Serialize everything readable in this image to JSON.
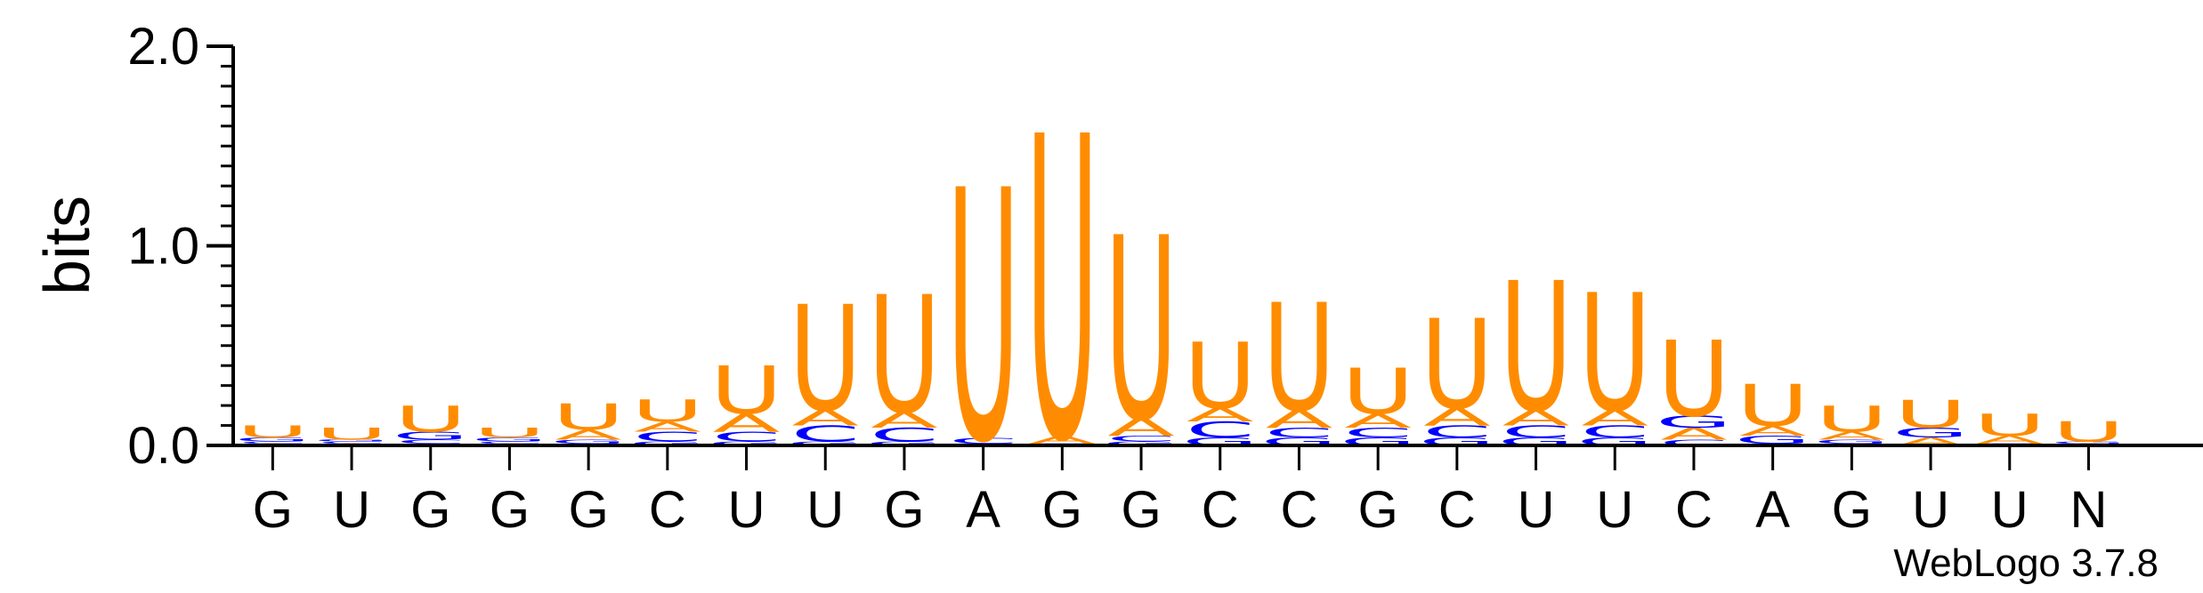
{
  "chart_data": {
    "type": "sequence-logo",
    "ylabel": "bits",
    "ylim": [
      0,
      2.0
    ],
    "yticks": [
      "0.0",
      "1.0",
      "2.0"
    ],
    "x": [
      "G",
      "U",
      "G",
      "G",
      "G",
      "C",
      "U",
      "U",
      "G",
      "A",
      "G",
      "G",
      "C",
      "C",
      "G",
      "C",
      "U",
      "U",
      "C",
      "A",
      "G",
      "U",
      "U",
      "N"
    ],
    "colors": {
      "U": "#ff8c00",
      "A": "#ff8c00",
      "C": "#0000ff",
      "G": "#0000ff"
    },
    "positions": [
      [
        {
          "l": "A",
          "v": 0.01
        },
        {
          "l": "C",
          "v": 0.01
        },
        {
          "l": "G",
          "v": 0.02
        },
        {
          "l": "U",
          "v": 0.06
        }
      ],
      [
        {
          "l": "A",
          "v": 0.01
        },
        {
          "l": "C",
          "v": 0.01
        },
        {
          "l": "G",
          "v": 0.01
        },
        {
          "l": "U",
          "v": 0.06
        }
      ],
      [
        {
          "l": "A",
          "v": 0.01
        },
        {
          "l": "C",
          "v": 0.02
        },
        {
          "l": "G",
          "v": 0.04
        },
        {
          "l": "U",
          "v": 0.13
        }
      ],
      [
        {
          "l": "A",
          "v": 0.01
        },
        {
          "l": "C",
          "v": 0.01
        },
        {
          "l": "G",
          "v": 0.02
        },
        {
          "l": "U",
          "v": 0.05
        }
      ],
      [
        {
          "l": "C",
          "v": 0.01
        },
        {
          "l": "G",
          "v": 0.02
        },
        {
          "l": "A",
          "v": 0.05
        },
        {
          "l": "U",
          "v": 0.13
        }
      ],
      [
        {
          "l": "G",
          "v": 0.02
        },
        {
          "l": "C",
          "v": 0.05
        },
        {
          "l": "A",
          "v": 0.05
        },
        {
          "l": "U",
          "v": 0.11
        }
      ],
      [
        {
          "l": "G",
          "v": 0.02
        },
        {
          "l": "C",
          "v": 0.05
        },
        {
          "l": "A",
          "v": 0.09
        },
        {
          "l": "U",
          "v": 0.24
        }
      ],
      [
        {
          "l": "G",
          "v": 0.02
        },
        {
          "l": "C",
          "v": 0.08
        },
        {
          "l": "A",
          "v": 0.08
        },
        {
          "l": "U",
          "v": 0.53
        }
      ],
      [
        {
          "l": "G",
          "v": 0.02
        },
        {
          "l": "C",
          "v": 0.07
        },
        {
          "l": "A",
          "v": 0.08
        },
        {
          "l": "U",
          "v": 0.59
        }
      ],
      [
        {
          "l": "G",
          "v": 0.01
        },
        {
          "l": "C",
          "v": 0.03
        },
        {
          "l": "U",
          "v": 1.26
        }
      ],
      [
        {
          "l": "G",
          "v": 0.01
        },
        {
          "l": "A",
          "v": 0.04
        },
        {
          "l": "U",
          "v": 1.52
        }
      ],
      [
        {
          "l": "G",
          "v": 0.02
        },
        {
          "l": "C",
          "v": 0.03
        },
        {
          "l": "A",
          "v": 0.09
        },
        {
          "l": "U",
          "v": 0.92
        }
      ],
      [
        {
          "l": "G",
          "v": 0.04
        },
        {
          "l": "C",
          "v": 0.08
        },
        {
          "l": "A",
          "v": 0.07
        },
        {
          "l": "U",
          "v": 0.33
        }
      ],
      [
        {
          "l": "G",
          "v": 0.04
        },
        {
          "l": "C",
          "v": 0.05
        },
        {
          "l": "A",
          "v": 0.09
        },
        {
          "l": "U",
          "v": 0.54
        }
      ],
      [
        {
          "l": "G",
          "v": 0.04
        },
        {
          "l": "C",
          "v": 0.05
        },
        {
          "l": "A",
          "v": 0.07
        },
        {
          "l": "U",
          "v": 0.23
        }
      ],
      [
        {
          "l": "G",
          "v": 0.04
        },
        {
          "l": "C",
          "v": 0.06
        },
        {
          "l": "A",
          "v": 0.09
        },
        {
          "l": "U",
          "v": 0.45
        }
      ],
      [
        {
          "l": "G",
          "v": 0.04
        },
        {
          "l": "C",
          "v": 0.06
        },
        {
          "l": "A",
          "v": 0.08
        },
        {
          "l": "U",
          "v": 0.65
        }
      ],
      [
        {
          "l": "G",
          "v": 0.04
        },
        {
          "l": "C",
          "v": 0.06
        },
        {
          "l": "A",
          "v": 0.08
        },
        {
          "l": "U",
          "v": 0.59
        }
      ],
      [
        {
          "l": "C",
          "v": 0.03
        },
        {
          "l": "A",
          "v": 0.06
        },
        {
          "l": "G",
          "v": 0.06
        },
        {
          "l": "U",
          "v": 0.38
        }
      ],
      [
        {
          "l": "C",
          "v": 0.01
        },
        {
          "l": "G",
          "v": 0.04
        },
        {
          "l": "A",
          "v": 0.05
        },
        {
          "l": "U",
          "v": 0.21
        }
      ],
      [
        {
          "l": "C",
          "v": 0.01
        },
        {
          "l": "G",
          "v": 0.02
        },
        {
          "l": "A",
          "v": 0.04
        },
        {
          "l": "U",
          "v": 0.13
        }
      ],
      [
        {
          "l": "A",
          "v": 0.04
        },
        {
          "l": "G",
          "v": 0.05
        },
        {
          "l": "U",
          "v": 0.14
        }
      ],
      [
        {
          "l": "G",
          "v": 0.01
        },
        {
          "l": "A",
          "v": 0.04
        },
        {
          "l": "U",
          "v": 0.11
        }
      ],
      [
        {
          "l": "A",
          "v": 0.01
        },
        {
          "l": "G",
          "v": 0.01
        },
        {
          "l": "U",
          "v": 0.1
        }
      ]
    ]
  },
  "footer": {
    "version": "WebLogo 3.7.8"
  }
}
